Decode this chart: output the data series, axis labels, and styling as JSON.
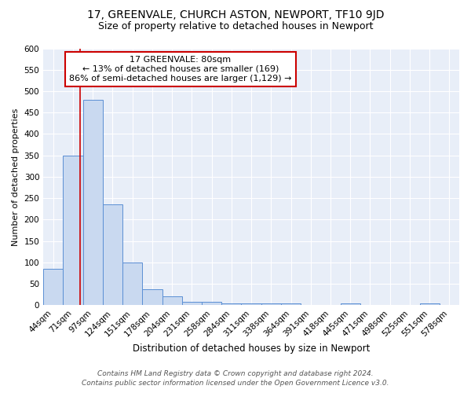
{
  "title": "17, GREENVALE, CHURCH ASTON, NEWPORT, TF10 9JD",
  "subtitle": "Size of property relative to detached houses in Newport",
  "xlabel": "Distribution of detached houses by size in Newport",
  "ylabel": "Number of detached properties",
  "bar_labels": [
    "44sqm",
    "71sqm",
    "97sqm",
    "124sqm",
    "151sqm",
    "178sqm",
    "204sqm",
    "231sqm",
    "258sqm",
    "284sqm",
    "311sqm",
    "338sqm",
    "364sqm",
    "391sqm",
    "418sqm",
    "445sqm",
    "471sqm",
    "498sqm",
    "525sqm",
    "551sqm",
    "578sqm"
  ],
  "bar_values": [
    85,
    350,
    480,
    235,
    100,
    38,
    20,
    8,
    8,
    5,
    5,
    5,
    5,
    0,
    0,
    5,
    0,
    0,
    0,
    5,
    0
  ],
  "bar_color": "#c9d9f0",
  "bar_edgecolor": "#5b8fd4",
  "property_line_color": "#cc0000",
  "property_line_bar_index": 1.35,
  "annotation_title": "17 GREENVALE: 80sqm",
  "annotation_line1": "← 13% of detached houses are smaller (169)",
  "annotation_line2": "86% of semi-detached houses are larger (1,129) →",
  "annotation_box_edgecolor": "#cc0000",
  "annotation_box_facecolor": "#ffffff",
  "ylim": [
    0,
    600
  ],
  "yticks": [
    0,
    50,
    100,
    150,
    200,
    250,
    300,
    350,
    400,
    450,
    500,
    550,
    600
  ],
  "footer_line1": "Contains HM Land Registry data © Crown copyright and database right 2024.",
  "footer_line2": "Contains public sector information licensed under the Open Government Licence v3.0.",
  "plot_bg_color": "#e8eef8",
  "grid_color": "#ffffff",
  "title_fontsize": 10,
  "subtitle_fontsize": 9,
  "xlabel_fontsize": 8.5,
  "ylabel_fontsize": 8,
  "tick_fontsize": 7.5,
  "footer_fontsize": 6.5,
  "annotation_fontsize": 8
}
